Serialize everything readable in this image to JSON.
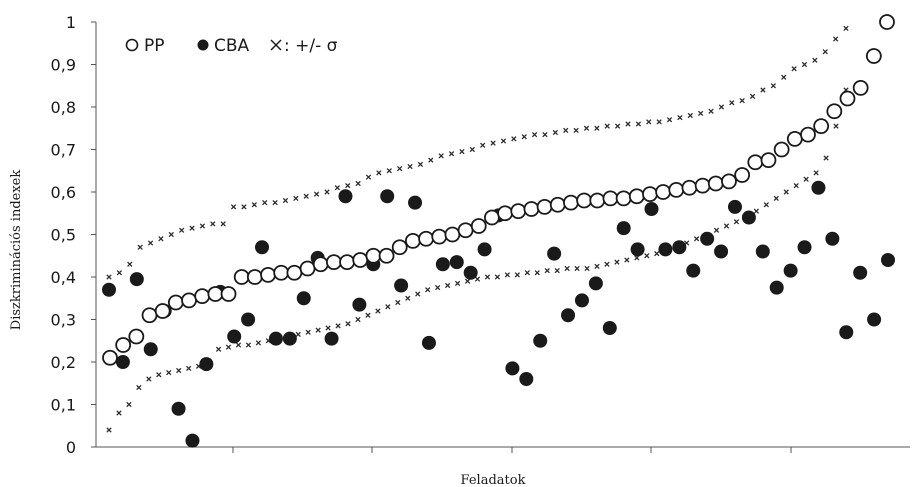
{
  "chart_data": {
    "type": "scatter",
    "ylabel": "Diszkriminációs indexek",
    "xlabel": "Feladatok",
    "ylim": [
      0,
      1
    ],
    "yticks": [
      "0",
      "0,1",
      "0,2",
      "0,3",
      "0,4",
      "0,5",
      "0,6",
      "0,7",
      "0,8",
      "0,9",
      "1"
    ],
    "legend": {
      "pp": "PP",
      "cba": "CBA",
      "sigma": ": +/- σ"
    },
    "colors": {
      "pp_fill": "#ffffff",
      "pp_stroke": "#1a1a1a",
      "cba": "#1a1a1a",
      "sigma": "#2a2a2a"
    },
    "series": [
      {
        "name": "PP",
        "values": [
          0.21,
          0.24,
          0.26,
          0.31,
          0.32,
          0.34,
          0.345,
          0.355,
          0.36,
          0.36,
          0.4,
          0.4,
          0.405,
          0.41,
          0.41,
          0.42,
          0.43,
          0.435,
          0.435,
          0.44,
          0.45,
          0.45,
          0.47,
          0.485,
          0.49,
          0.495,
          0.5,
          0.51,
          0.52,
          0.54,
          0.55,
          0.555,
          0.56,
          0.565,
          0.57,
          0.575,
          0.58,
          0.58,
          0.585,
          0.585,
          0.59,
          0.595,
          0.6,
          0.605,
          0.61,
          0.615,
          0.62,
          0.625,
          0.64,
          0.67,
          0.675,
          0.7,
          0.725,
          0.735,
          0.755,
          0.79,
          0.82,
          0.845,
          0.92,
          1.0
        ]
      },
      {
        "name": "CBA",
        "values": [
          0.37,
          0.2,
          0.395,
          0.23,
          0.32,
          0.09,
          0.015,
          0.195,
          0.365,
          0.26,
          0.3,
          0.47,
          0.255,
          0.255,
          0.35,
          0.445,
          0.255,
          0.59,
          0.335,
          0.43,
          0.59,
          0.38,
          0.575,
          0.245,
          0.43,
          0.435,
          0.41,
          0.465,
          0.545,
          0.185,
          0.16,
          0.25,
          0.455,
          0.31,
          0.345,
          0.385,
          0.28,
          0.515,
          0.465,
          0.56,
          0.465,
          0.47,
          0.415,
          0.49,
          0.46,
          0.565,
          0.54,
          0.46,
          0.375,
          0.415,
          0.47,
          0.61,
          0.49,
          0.27,
          0.41,
          0.3,
          0.44
        ]
      },
      {
        "name": "+σ",
        "values": [
          0.4,
          0.41,
          0.43,
          0.47,
          0.48,
          0.49,
          0.5,
          0.51,
          0.515,
          0.52,
          0.525,
          0.525,
          0.565,
          0.565,
          0.57,
          0.575,
          0.575,
          0.58,
          0.585,
          0.59,
          0.595,
          0.6,
          0.61,
          0.615,
          0.62,
          0.635,
          0.645,
          0.65,
          0.655,
          0.66,
          0.665,
          0.675,
          0.685,
          0.69,
          0.695,
          0.7,
          0.71,
          0.715,
          0.72,
          0.725,
          0.73,
          0.735,
          0.735,
          0.74,
          0.745,
          0.745,
          0.75,
          0.75,
          0.755,
          0.755,
          0.76,
          0.76,
          0.765,
          0.765,
          0.77,
          0.775,
          0.78,
          0.785,
          0.79,
          0.8,
          0.81,
          0.815,
          0.825,
          0.84,
          0.85,
          0.87,
          0.89,
          0.9,
          0.91,
          0.93,
          0.96,
          0.985
        ]
      },
      {
        "name": "-σ",
        "values": [
          0.04,
          0.08,
          0.1,
          0.14,
          0.16,
          0.17,
          0.175,
          0.18,
          0.185,
          0.19,
          0.2,
          0.23,
          0.235,
          0.24,
          0.24,
          0.245,
          0.25,
          0.255,
          0.26,
          0.265,
          0.27,
          0.275,
          0.28,
          0.285,
          0.29,
          0.3,
          0.31,
          0.32,
          0.33,
          0.34,
          0.35,
          0.36,
          0.37,
          0.375,
          0.38,
          0.385,
          0.39,
          0.395,
          0.4,
          0.4,
          0.405,
          0.405,
          0.41,
          0.41,
          0.415,
          0.415,
          0.42,
          0.42,
          0.42,
          0.425,
          0.43,
          0.435,
          0.44,
          0.445,
          0.45,
          0.455,
          0.46,
          0.47,
          0.48,
          0.49,
          0.5,
          0.51,
          0.52,
          0.53,
          0.54,
          0.555,
          0.57,
          0.585,
          0.6,
          0.615,
          0.63,
          0.645,
          0.68,
          0.755,
          0.84
        ]
      }
    ]
  }
}
